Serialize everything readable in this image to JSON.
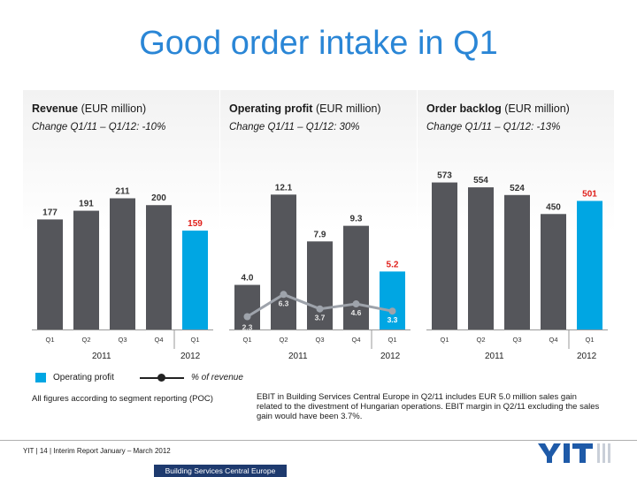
{
  "title": "Good order intake in Q1",
  "panels": [
    {
      "metric": "Revenue",
      "unit": "(EUR million)",
      "change": "Change Q1/11 – Q1/12: -10%"
    },
    {
      "metric": "Operating profit",
      "unit": "(EUR million)",
      "change": "Change Q1/11 – Q1/12: 30%"
    },
    {
      "metric": "Order backlog",
      "unit": "(EUR million)",
      "change": "Change Q1/11 – Q1/12: -13%"
    }
  ],
  "years": [
    "2011",
    "2012"
  ],
  "legend": {
    "bar": "Operating profit",
    "line": "% of revenue"
  },
  "notes": {
    "left": "All figures according to segment reporting (POC)",
    "right": "EBIT in Building Services Central Europe in Q2/11 includes EUR 5.0 million sales gain related to the divestment of Hungarian operations. EBIT margin in Q2/11 excluding the sales gain would have been 3.7%."
  },
  "footer": {
    "text": "YIT | 14 | Interim Report January – March 2012",
    "section": "Building Services Central Europe"
  },
  "colors": {
    "title": "#2a86d6",
    "bar_dark": "#55565b",
    "bar_highlight": "#00a6e3",
    "line": "#9ea3ab"
  },
  "chart_data": [
    {
      "type": "bar",
      "title": "Revenue (EUR million)",
      "categories": [
        "Q1",
        "Q2",
        "Q3",
        "Q4",
        "Q1"
      ],
      "values": [
        177,
        191,
        211,
        200,
        159
      ],
      "ylim": [
        0,
        260
      ]
    },
    {
      "type": "bar",
      "title": "Operating profit (EUR million)",
      "categories": [
        "Q1",
        "Q2",
        "Q3",
        "Q4",
        "Q1"
      ],
      "values": [
        4.0,
        12.1,
        7.9,
        9.3,
        5.2
      ],
      "ylim": [
        0,
        14.5
      ],
      "series": [
        {
          "name": "Operating profit",
          "values": [
            4.0,
            12.1,
            7.9,
            9.3,
            5.2
          ]
        },
        {
          "name": "% of revenue",
          "values": [
            2.3,
            6.3,
            3.7,
            4.6,
            3.3
          ]
        }
      ]
    },
    {
      "type": "bar",
      "title": "Order backlog (EUR million)",
      "categories": [
        "Q1",
        "Q2",
        "Q3",
        "Q4",
        "Q1"
      ],
      "values": [
        573,
        554,
        524,
        450,
        501
      ],
      "ylim": [
        0,
        630
      ]
    }
  ]
}
